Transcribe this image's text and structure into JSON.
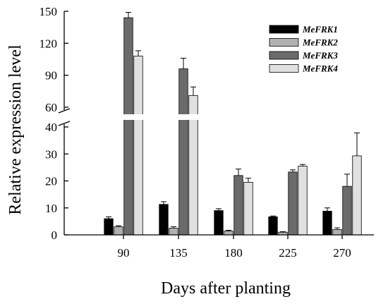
{
  "chart_data": {
    "type": "bar",
    "xlabel": "Days after planting",
    "ylabel": "Relative expression level",
    "categories": [
      "90",
      "135",
      "180",
      "225",
      "270"
    ],
    "series": [
      {
        "name": "MeFRK1",
        "color": "#000000",
        "values": [
          6.0,
          11.3,
          9.0,
          6.7,
          8.8
        ],
        "errors": [
          0.7,
          1.0,
          0.7,
          0.3,
          1.2
        ]
      },
      {
        "name": "MeFRK2",
        "color": "#b0b0b0",
        "values": [
          3.0,
          2.5,
          1.4,
          1.0,
          2.0
        ],
        "errors": [
          0.4,
          0.5,
          0.3,
          0.2,
          0.6
        ]
      },
      {
        "name": "MeFRK3",
        "color": "#6b6b6b",
        "values": [
          144,
          96,
          22.0,
          23.3,
          18.0
        ],
        "errors": [
          5,
          10,
          2.4,
          0.8,
          4.5
        ]
      },
      {
        "name": "MeFRK4",
        "color": "#e0e0e0",
        "values": [
          108,
          71,
          19.5,
          25.5,
          29.3
        ],
        "errors": [
          5,
          8,
          1.5,
          0.6,
          8.5
        ]
      }
    ],
    "ylim_lower": [
      0,
      40
    ],
    "ylim_upper": [
      60,
      150
    ],
    "yticks_lower": [
      "0",
      "10",
      "20",
      "30",
      "40"
    ],
    "yticks_upper": [
      "60",
      "90",
      "120",
      "150"
    ],
    "axis_break": true,
    "legend": {
      "placement": "top-right"
    },
    "grid": false
  }
}
